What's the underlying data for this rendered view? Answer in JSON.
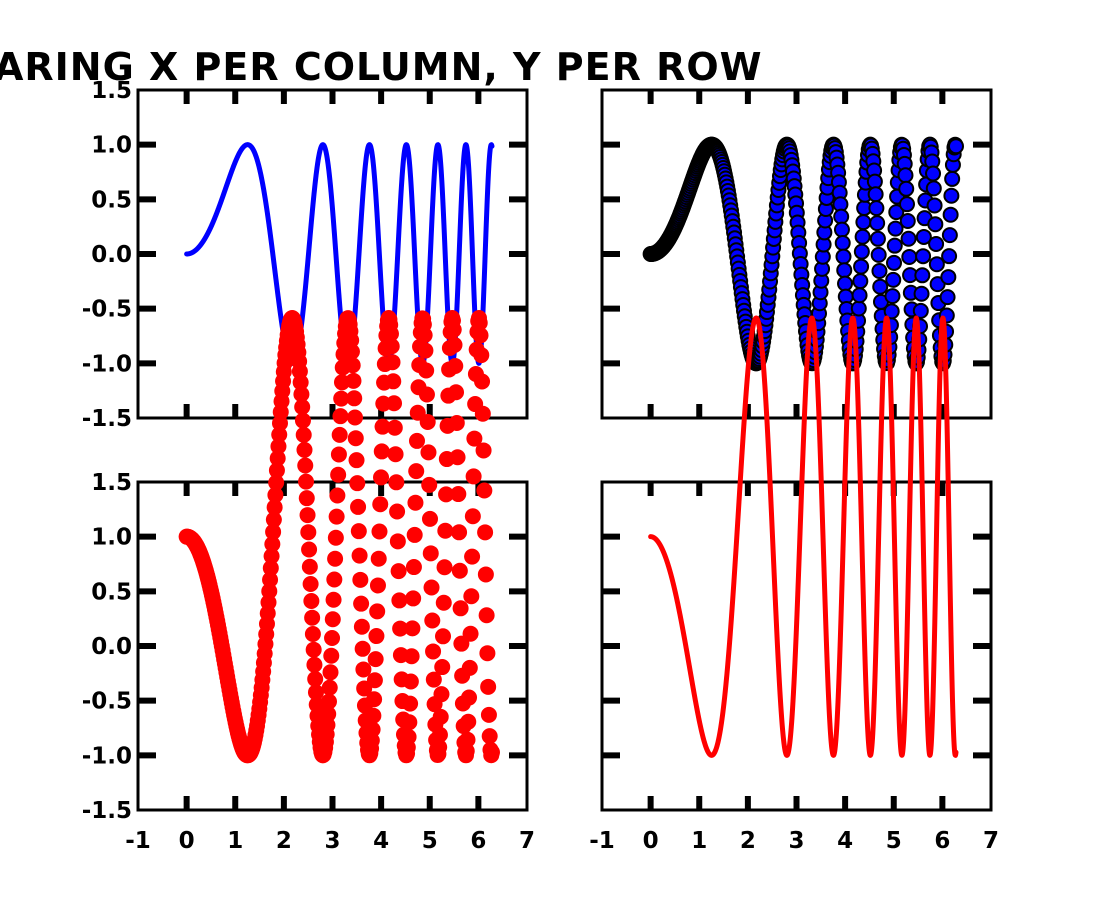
{
  "figure": {
    "title": "ARING X PER COLUMN, Y PER ROW"
  },
  "chart_data": [
    {
      "type": "line",
      "panel": "top-left",
      "function": "y = sin(x^2)",
      "x_range": [
        0,
        6.28
      ],
      "xlim": [
        -1,
        7
      ],
      "ylim": [
        -1.5,
        1.5
      ],
      "xticks": [
        "-1",
        "0",
        "1",
        "2",
        "3",
        "4",
        "5",
        "6",
        "7"
      ],
      "yticks": [
        "1.5",
        "1.0",
        "0.5",
        "0.0",
        "-0.5",
        "-1.0",
        "-1.5"
      ],
      "x_tick_labels_visible": false,
      "y_tick_labels_visible": true,
      "color": "#0000ff",
      "style": "line"
    },
    {
      "type": "scatter",
      "panel": "top-right",
      "function": "y = sin(x^2)",
      "x_range": [
        0,
        6.28
      ],
      "xlim": [
        -1,
        7
      ],
      "ylim": [
        -1.5,
        1.5
      ],
      "xticks": [
        "-1",
        "0",
        "1",
        "2",
        "3",
        "4",
        "5",
        "6",
        "7"
      ],
      "yticks": [
        "1.5",
        "1.0",
        "0.5",
        "0.0",
        "-0.5",
        "-1.0",
        "-1.5"
      ],
      "x_tick_labels_visible": false,
      "y_tick_labels_visible": false,
      "color": "#0000ff",
      "edge_color": "#000000",
      "style": "markers"
    },
    {
      "type": "scatter",
      "panel": "bottom-left",
      "function": "y = 1 - 2*sin(x^2)",
      "x_range": [
        0,
        6.28
      ],
      "xlim": [
        -1,
        7
      ],
      "ylim": [
        -1.5,
        1.5
      ],
      "xticks": [
        "-1",
        "0",
        "1",
        "2",
        "3",
        "4",
        "5",
        "6",
        "7"
      ],
      "yticks": [
        "1.5",
        "1.0",
        "0.5",
        "0.0",
        "-0.5",
        "-1.0",
        "-1.5"
      ],
      "x_tick_labels_visible": true,
      "y_tick_labels_visible": true,
      "color": "#ff0000",
      "style": "markers"
    },
    {
      "type": "line",
      "panel": "bottom-right",
      "function": "y = 1 - 2*sin(x^2)",
      "x_range": [
        0,
        6.28
      ],
      "xlim": [
        -1,
        7
      ],
      "ylim": [
        -1.5,
        1.5
      ],
      "xticks": [
        "-1",
        "0",
        "1",
        "2",
        "3",
        "4",
        "5",
        "6",
        "7"
      ],
      "yticks": [
        "1.5",
        "1.0",
        "0.5",
        "0.0",
        "-0.5",
        "-1.0",
        "-1.5"
      ],
      "x_tick_labels_visible": true,
      "y_tick_labels_visible": false,
      "color": "#ff0000",
      "style": "line"
    }
  ]
}
